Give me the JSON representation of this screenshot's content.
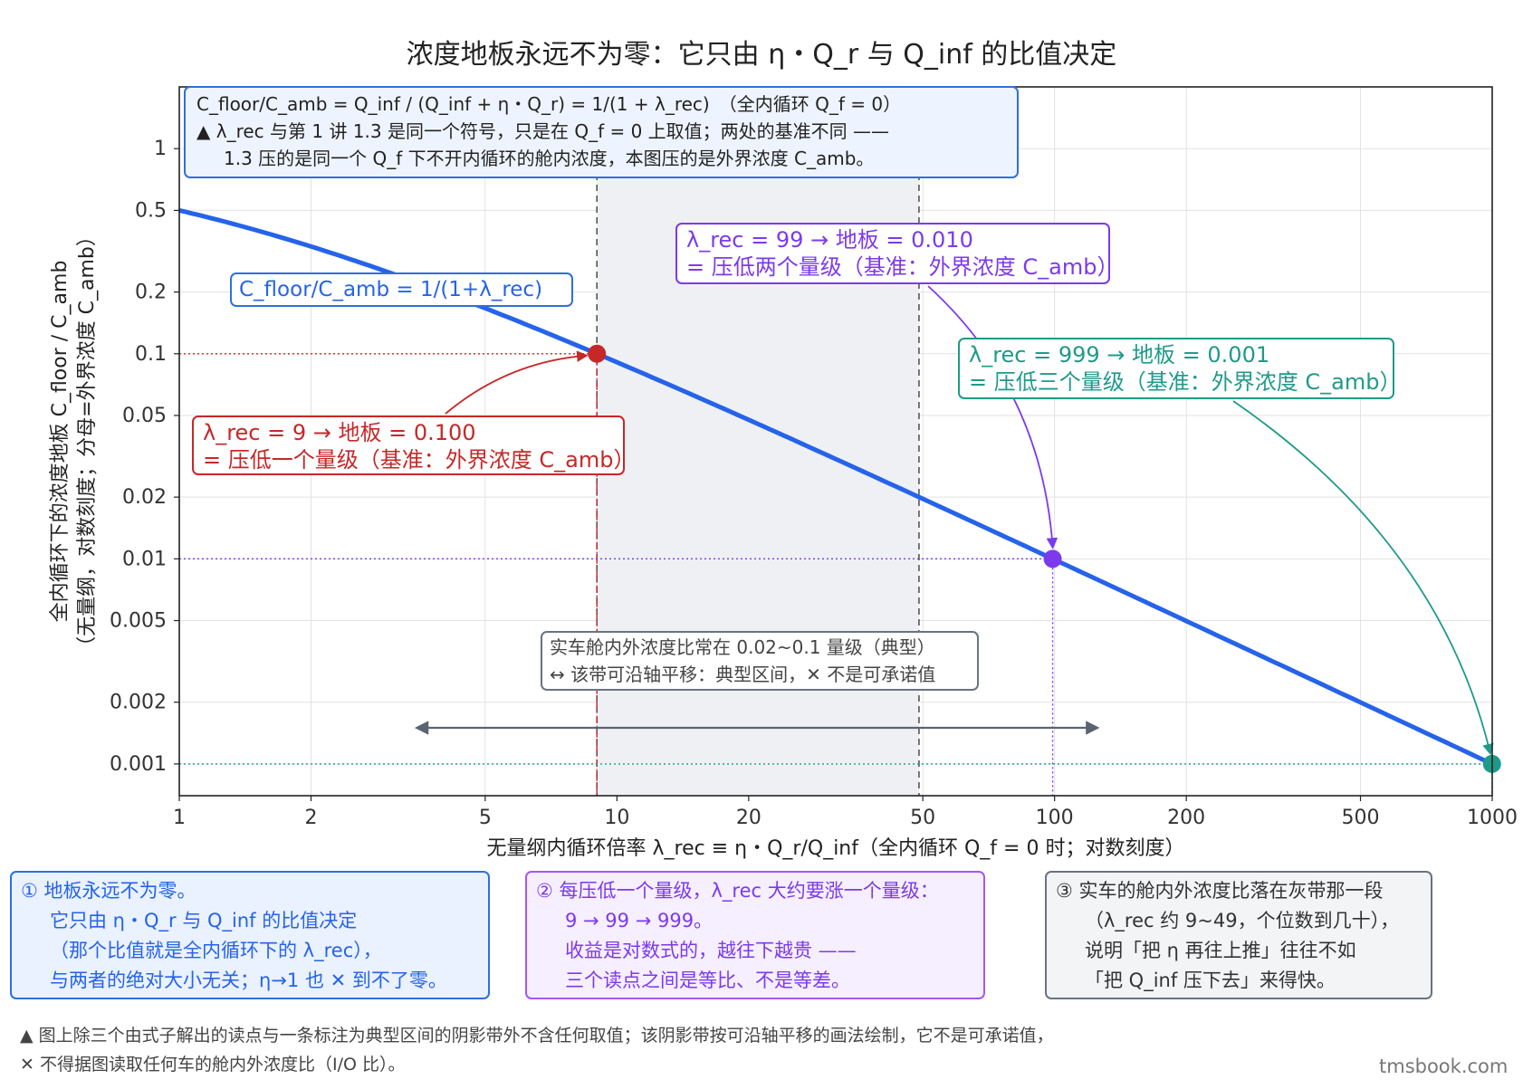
{
  "title": "浓度地板永远不为零：它只由 η・Q_r 与 Q_inf 的比值决定",
  "watermark": "tmsbook.com",
  "formula_box": {
    "line1": "C_floor/C_amb = Q_inf / (Q_inf + η・Q_r) = 1/(1 + λ_rec)　（全内循环 Q_f = 0）",
    "line2": "▲ λ_rec 与第 1 讲 1.3 是同一个符号，只是在 Q_f = 0 上取值；两处的基准不同 ——",
    "line3": "1.3 压的是同一个 Q_f 下不开内循环的舱内浓度，本图压的是外界浓度 C_amb。"
  },
  "curve_label": "C_floor/C_amb = 1/(1+λ_rec)",
  "annotations": {
    "red": {
      "line1": "λ_rec = 9 → 地板 = 0.100",
      "line2": "= 压低一个量级（基准：外界浓度 C_amb）"
    },
    "purple": {
      "line1": "λ_rec = 99 → 地板 = 0.010",
      "line2": "= 压低两个量级（基准：外界浓度 C_amb）"
    },
    "teal": {
      "line1": "λ_rec = 999 → 地板 = 0.001",
      "line2": "= 压低三个量级（基准：外界浓度 C_amb）"
    },
    "band": {
      "line1": "实车舱内外浓度比常在 0.02~0.1 量级（典型）",
      "line2": "↔ 该带可沿轴平移：典型区间，✕ 不是可承诺值"
    }
  },
  "notes": {
    "blue": {
      "line1": "① 地板永远不为零。",
      "line2": "它只由 η・Q_r 与 Q_inf 的比值决定",
      "line3": "（那个比值就是全内循环下的 λ_rec），",
      "line4": "与两者的绝对大小无关；η→1 也 ✕ 到不了零。"
    },
    "purple": {
      "line1": "② 每压低一个量级，λ_rec 大约要涨一个量级：",
      "line2": "9 → 99 → 999。",
      "line3": "收益是对数式的，越往下越贵 ——",
      "line4": "三个读点之间是等比、不是等差。"
    },
    "gray": {
      "line1": "③ 实车的舱内外浓度比落在灰带那一段",
      "line2": "（λ_rec 约 9~49，个位数到几十），",
      "line3": "说明「把 η 再往上推」往往不如",
      "line4": "「把 Q_inf 压下去」来得快。"
    }
  },
  "footnote": {
    "line1": "▲ 图上除三个由式子解出的读点与一条标注为典型区间的阴影带外不含任何取值；该阴影带按可沿轴平移的画法绘制，它不是可承诺值，",
    "line2": "✕ 不得据图读取任何车的舱内外浓度比（I/O 比）。"
  },
  "chart_data": {
    "type": "line",
    "xlabel": "无量纲内循环倍率 λ_rec ≡ η・Q_r/Q_inf（全内循环 Q_f = 0 时；对数刻度）",
    "ylabel": "全内循环下的浓度地板 C_floor / C_amb",
    "ylabel2": "（无量纲，对数刻度；分母=外界浓度 C_amb）",
    "x_scale": "log",
    "y_scale": "log",
    "xlim": [
      1,
      1000
    ],
    "ylim": [
      0.0007,
      2
    ],
    "x_ticks": [
      1,
      2,
      5,
      10,
      20,
      50,
      100,
      200,
      500,
      1000
    ],
    "x_tick_labels": [
      "1",
      "2",
      "5",
      "10",
      "20",
      "50",
      "100",
      "200",
      "500",
      "1000"
    ],
    "y_ticks": [
      0.001,
      0.002,
      0.005,
      0.01,
      0.02,
      0.05,
      0.1,
      0.2,
      0.5,
      1
    ],
    "y_tick_labels": [
      "0.001",
      "0.002",
      "0.005",
      "0.01",
      "0.02",
      "0.05",
      "0.1",
      "0.2",
      "0.5",
      "1"
    ],
    "grid": true,
    "series": [
      {
        "name": "C_floor/C_amb = 1/(1+λ_rec)",
        "x": [
          1,
          2,
          5,
          9,
          20,
          49,
          99,
          200,
          500,
          999
        ],
        "y": [
          0.5,
          0.3333,
          0.1667,
          0.1,
          0.0476,
          0.02,
          0.01,
          0.005,
          0.002,
          0.001
        ],
        "color": "#2563eb"
      }
    ],
    "points": [
      {
        "x": 9,
        "y": 0.1,
        "color": "#c62828"
      },
      {
        "x": 99,
        "y": 0.01,
        "color": "#7c3aed"
      },
      {
        "x": 999,
        "y": 0.001,
        "color": "#1f9a8a"
      }
    ],
    "shaded_band": {
      "x_range": [
        9,
        49
      ],
      "color": "#e5e7eb"
    },
    "band_arrow": {
      "x_range": [
        3.5,
        125
      ],
      "y": 0.0015
    }
  }
}
